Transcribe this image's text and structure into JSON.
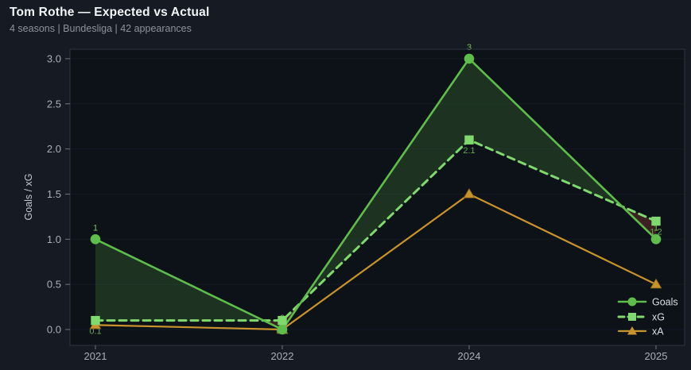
{
  "header": {
    "title": "Tom Rothe — Expected vs Actual",
    "subtitle": "4 seasons | Bundesliga | 42 appearances"
  },
  "chart_data": {
    "type": "line",
    "title": "Tom Rothe — Expected vs Actual",
    "categories": [
      "2021",
      "2022",
      "2024",
      "2025"
    ],
    "series": [
      {
        "name": "Goals",
        "values": [
          1,
          0,
          3,
          1
        ],
        "labels": [
          "1",
          "0",
          "3",
          "1"
        ],
        "color": "#5ebd4b",
        "label_color": "#79c25f",
        "line": "solid",
        "marker": "circle"
      },
      {
        "name": "xG",
        "values": [
          0.1,
          0.1,
          2.1,
          1.2
        ],
        "labels": [
          "0.1",
          "0.1",
          "2.1",
          "1.2"
        ],
        "color": "#7fd96f",
        "label_color": "#67a854",
        "line": "dashed",
        "marker": "square"
      },
      {
        "name": "xA",
        "values": [
          0.05,
          0,
          1.5,
          0.5
        ],
        "labels": [
          "",
          "",
          "",
          ""
        ],
        "color": "#c9932b",
        "label_color": "#c9932b",
        "line": "solid",
        "marker": "triangle"
      }
    ],
    "fill_between": {
      "between": [
        "Goals",
        "xG"
      ],
      "positive_color": "rgba(86,168,66,0.22)",
      "negative_color": "rgba(172,70,56,0.30)"
    },
    "xlabel": "",
    "ylabel": "Goals / xG",
    "ytick_values": [
      0,
      0.5,
      1,
      1.5,
      2,
      2.5,
      3
    ],
    "ytick_labels": [
      "0.0",
      "0.5",
      "1.0",
      "1.5",
      "2.0",
      "2.5",
      "3.0"
    ],
    "ylim": [
      -0.18,
      3.11
    ],
    "grid": "horizontal",
    "legend": {
      "position": "lower right",
      "entries": [
        "Goals",
        "xG",
        "xA"
      ]
    }
  },
  "colors": {
    "page_bg": "#151a23",
    "plot_bg": "#0d1118",
    "plot_border": "#2e3542",
    "gridline": "#141a26",
    "tick": "#6f7682",
    "tick_text": "#a9afb9",
    "axis_label_text": "#c3c8d0",
    "legend_text": "#dcdfe5",
    "title_text": "#f3f5f8",
    "subtitle_text": "#8d939d"
  }
}
